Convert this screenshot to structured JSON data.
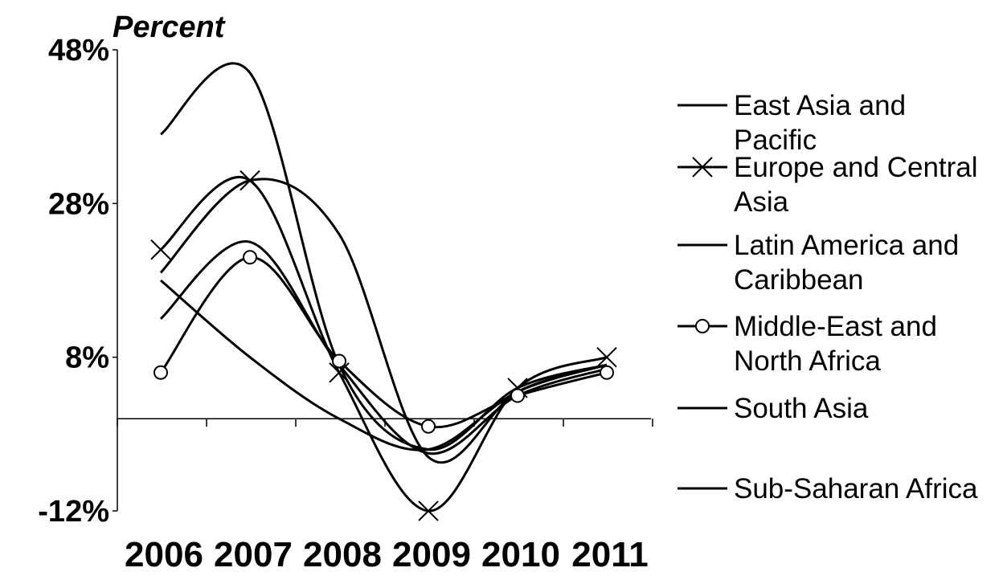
{
  "chart_data": {
    "type": "line",
    "title": "",
    "ylabel": "Percent",
    "xlabel": "",
    "categories": [
      "2006",
      "2007",
      "2008",
      "2009",
      "2010",
      "2011"
    ],
    "ylim": [
      -12,
      48
    ],
    "yticks": [
      -12,
      8,
      28,
      48
    ],
    "ytick_labels": [
      "-12%",
      "8%",
      "28%",
      "48%"
    ],
    "grid": false,
    "legend_position": "right",
    "series": [
      {
        "name": "East Asia and Pacific",
        "marker": "none",
        "values": [
          37,
          45,
          7,
          -4,
          4,
          7
        ]
      },
      {
        "name": "Europe and Central Asia",
        "marker": "x",
        "values": [
          22,
          31,
          6,
          -12,
          4,
          8
        ]
      },
      {
        "name": "Latin America and Caribbean",
        "marker": "none",
        "values": [
          19,
          31,
          24,
          -5,
          3.5,
          7
        ]
      },
      {
        "name": "Middle-East and North Africa",
        "marker": "circle",
        "values": [
          6,
          21,
          7.5,
          -1,
          3,
          6
        ]
      },
      {
        "name": "South Asia",
        "marker": "none",
        "values": [
          18,
          8,
          0,
          -4,
          3.5,
          7
        ]
      },
      {
        "name": "Sub-Saharan Africa",
        "marker": "none",
        "values": [
          13,
          23,
          7,
          -4.5,
          3,
          6.5
        ]
      }
    ]
  }
}
